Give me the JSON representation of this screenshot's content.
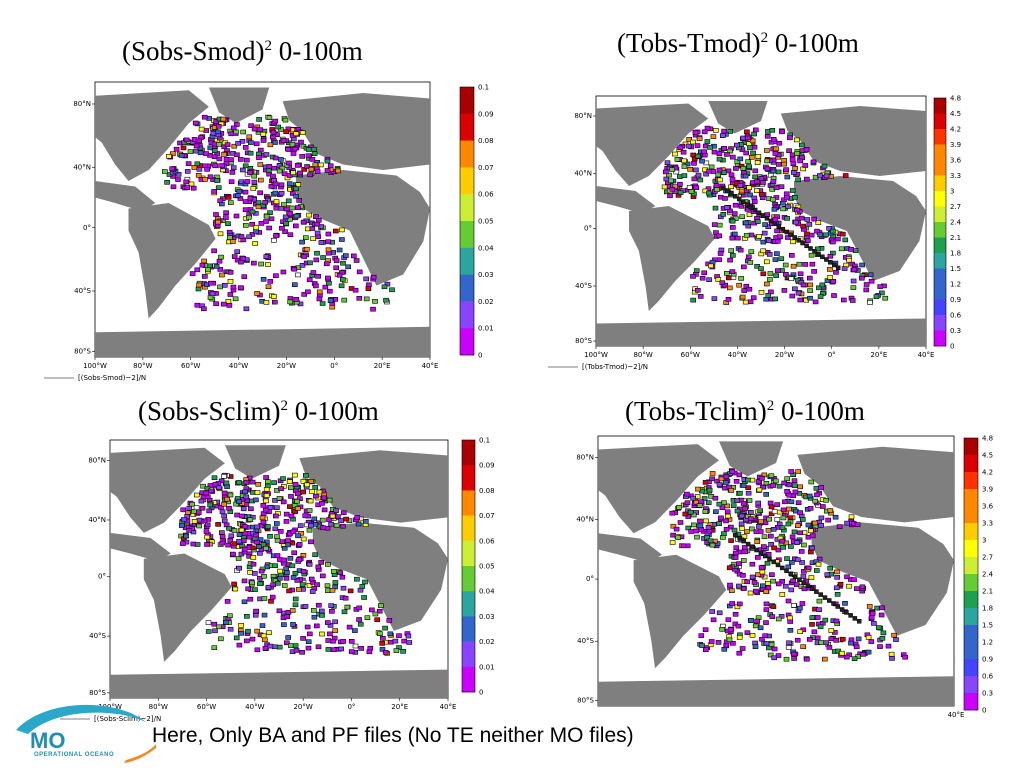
{
  "slide": {
    "footer_text": "Here, Only BA and PF files (No TE neither MO files)",
    "logo": {
      "text": "MO",
      "subtext": "OPERATIONAL OCEANO"
    }
  },
  "colors": {
    "land": "#7f7f7f",
    "background": "#ffffff",
    "palette": [
      "#cc00ff",
      "#8844ff",
      "#4444ff",
      "#3366cc",
      "#2aa5a0",
      "#1ea050",
      "#66cc33",
      "#ccee33",
      "#ffff00",
      "#ffcc00",
      "#ff8800",
      "#ff3300",
      "#dd0000",
      "#aa0000"
    ]
  },
  "panels": [
    {
      "id": "sobs-smod",
      "title_main": "(Sobs-Smod)",
      "title_sup": "2",
      "title_rest": " 0-100m",
      "caption": "[(Sobs-Smod)~2]/N",
      "lat_labels": [
        "80°N",
        "40°N",
        "0°",
        "40°S",
        "80°S"
      ],
      "lon_labels": [
        "100°W",
        "80°W",
        "60°W",
        "40°W",
        "20°W",
        "0°",
        "20°E",
        "40°E"
      ],
      "colorbar_labels": [
        "0.1",
        "0.09",
        "0.08",
        "0.07",
        "0.06",
        "0.05",
        "0.04",
        "0.03",
        "0.02",
        "0.01",
        "0"
      ]
    },
    {
      "id": "tobs-tmod",
      "title_main": "(Tobs-Tmod)",
      "title_sup": "2",
      "title_rest": " 0-100m",
      "caption": "[(Tobs-Tmod)~2]/N",
      "lat_labels": [
        "80°N",
        "40°N",
        "0°",
        "40°S",
        "80°S"
      ],
      "lon_labels": [
        "100°W",
        "80°W",
        "60°W",
        "40°W",
        "20°W",
        "0°",
        "20°E",
        "40°E"
      ],
      "colorbar_labels": [
        "4.8",
        "4.5",
        "4.2",
        "3.9",
        "3.6",
        "3.3",
        "3",
        "2.7",
        "2.4",
        "2.1",
        "1.8",
        "1.5",
        "1.2",
        "0.9",
        "0.6",
        "0.3",
        "0"
      ]
    },
    {
      "id": "sobs-sclim",
      "title_main": "(Sobs-Sclim)",
      "title_sup": "2",
      "title_rest": " 0-100m",
      "caption": "[(Sobs-Sclim)~2]/N",
      "lat_labels": [
        "80°N",
        "40°N",
        "0°",
        "40°S",
        "80°S"
      ],
      "lon_labels": [
        "100°W",
        "80°W",
        "60°W",
        "40°W",
        "20°W",
        "0°",
        "20°E",
        "40°E"
      ],
      "colorbar_labels": [
        "0.1",
        "0.09",
        "0.08",
        "0.07",
        "0.06",
        "0.05",
        "0.04",
        "0.03",
        "0.02",
        "0.01",
        "0"
      ]
    },
    {
      "id": "tobs-tclim",
      "title_main": "(Tobs-Tclim)",
      "title_sup": "2",
      "title_rest": " 0-100m",
      "caption": "",
      "lat_labels": [
        "80°N",
        "40°N",
        "0°",
        "40°S",
        "80°S"
      ],
      "lon_labels": [
        "40°E"
      ],
      "colorbar_labels": [
        "4.8",
        "4.5",
        "4.2",
        "3.9",
        "3.6",
        "3.3",
        "3",
        "2.7",
        "2.4",
        "2.1",
        "1.8",
        "1.5",
        "1.2",
        "0.9",
        "0.6",
        "0.3",
        "0"
      ]
    }
  ]
}
